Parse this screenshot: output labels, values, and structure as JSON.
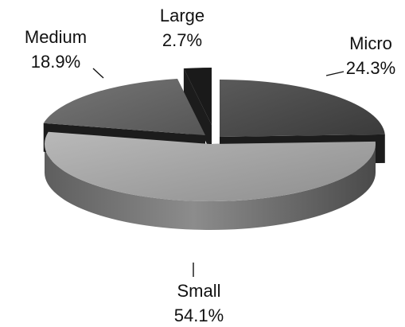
{
  "chart_data": {
    "type": "pie",
    "three_d": true,
    "title": "",
    "slices": [
      {
        "name": "Micro",
        "value": 24.3,
        "label": "24.3%",
        "color": "#4a4a4a",
        "exploded": true
      },
      {
        "name": "Small",
        "value": 54.1,
        "label": "54.1%",
        "color": "#9a9a9a",
        "exploded": false
      },
      {
        "name": "Medium",
        "value": 18.9,
        "label": "18.9%",
        "color": "#666666",
        "exploded": true
      },
      {
        "name": "Large",
        "value": 2.7,
        "label": "2.7%",
        "color": "#1a1a1a",
        "exploded": true
      }
    ]
  }
}
